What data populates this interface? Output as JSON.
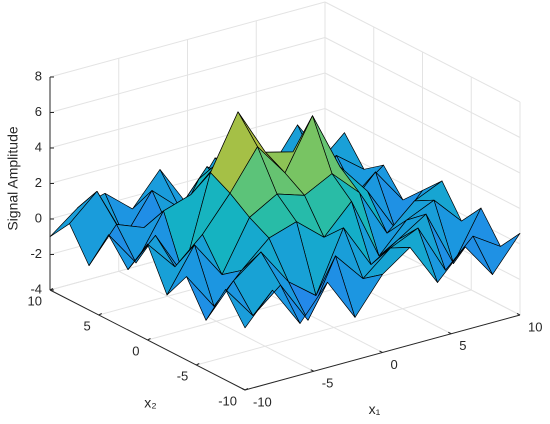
{
  "chart_data": {
    "type": "surface",
    "zlabel": "Signal Amplitude",
    "xlabel": "x₁",
    "ylabel": "x₂",
    "x": [
      -10,
      -8,
      -6,
      -4,
      -2,
      0,
      2,
      4,
      6,
      8,
      10
    ],
    "y": [
      -10,
      -8,
      -6,
      -4,
      -2,
      0,
      2,
      4,
      6,
      8,
      10
    ],
    "z": [
      [
        -0.5,
        1.2,
        -1.1,
        0.8,
        -1.6,
        0.4,
        1.5,
        -0.9,
        0.7,
        -1.3,
        0.6
      ],
      [
        1.1,
        -0.8,
        0.5,
        -1.9,
        1.3,
        -0.4,
        0.9,
        1.6,
        -1.2,
        0.3,
        -0.7
      ],
      [
        -1.2,
        0.6,
        1.8,
        -0.3,
        -1.5,
        1.9,
        -0.6,
        0.4,
        1.4,
        -1.8,
        0.9
      ],
      [
        0.7,
        -1.4,
        0.2,
        1.6,
        2.1,
        0.8,
        2.4,
        -1.1,
        0.5,
        1.2,
        -0.4
      ],
      [
        -0.9,
        1.5,
        -0.6,
        2.2,
        3.1,
        2.6,
        3.4,
        1.9,
        -0.8,
        0.6,
        1.3
      ],
      [
        1.4,
        -0.3,
        1.1,
        3.0,
        5.2,
        3.3,
        6.1,
        2.8,
        1.0,
        -1.5,
        0.2
      ],
      [
        -0.6,
        0.9,
        -1.7,
        3.6,
        6.6,
        3.9,
        3.5,
        1.7,
        -0.5,
        1.1,
        -0.9
      ],
      [
        0.8,
        -1.2,
        1.3,
        1.8,
        3.2,
        2.4,
        1.6,
        0.3,
        1.6,
        -0.7,
        0.5
      ],
      [
        -1.5,
        0.4,
        -0.2,
        -1.0,
        1.7,
        0.6,
        -0.8,
        1.5,
        -1.4,
        0.9,
        -0.3
      ],
      [
        0.3,
        1.7,
        -1.3,
        0.9,
        -0.5,
        1.4,
        0.2,
        -1.6,
        0.8,
        -0.2,
        1.2
      ],
      [
        -1.0,
        0.2,
        0.6,
        -0.7,
        1.1,
        -1.3,
        0.9,
        0.4,
        -0.6,
        1.5,
        -0.8
      ]
    ],
    "xlim": [
      -10,
      10
    ],
    "ylim": [
      -10,
      10
    ],
    "zlim": [
      -4,
      8
    ],
    "xticks": [
      -10,
      -5,
      0,
      5,
      10
    ],
    "yticks": [
      -10,
      -5,
      0,
      5,
      10
    ],
    "zticks": [
      -4,
      -2,
      0,
      2,
      4,
      6,
      8
    ],
    "grid": true,
    "edge_color": "#000000",
    "colormap": [
      "#3e26a8",
      "#4245e6",
      "#2c76f3",
      "#1b98e0",
      "#13b2c4",
      "#32c09a",
      "#81c55c",
      "#d0ba2c",
      "#fcc53b",
      "#f9fb15"
    ]
  }
}
